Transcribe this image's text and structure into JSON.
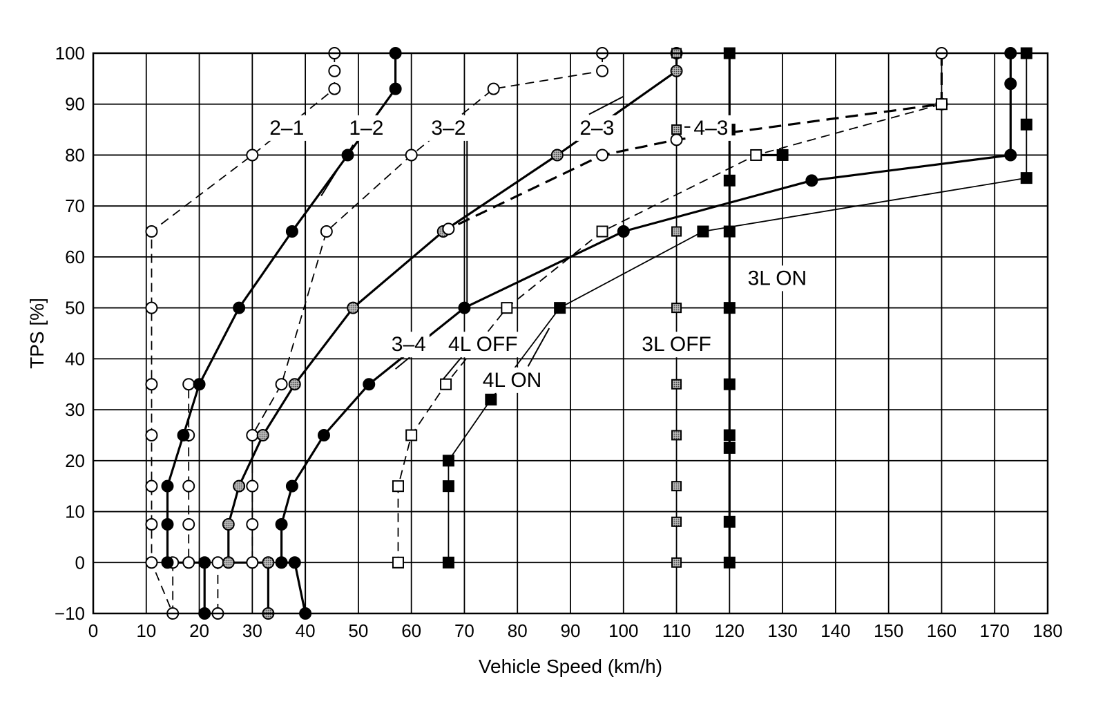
{
  "chart_data": {
    "type": "line",
    "title": "",
    "xlabel": "Vehicle Speed (km/h)",
    "ylabel": "TPS [%]",
    "xlim": [
      0,
      180
    ],
    "ylim": [
      -10,
      100
    ],
    "x_ticks": [
      0,
      10,
      20,
      30,
      40,
      50,
      60,
      70,
      80,
      90,
      100,
      110,
      120,
      130,
      140,
      150,
      160,
      170,
      180
    ],
    "y_ticks": [
      -10,
      0,
      10,
      20,
      30,
      40,
      50,
      60,
      70,
      80,
      90,
      100
    ],
    "x_tick_labels": [
      "0",
      "10",
      "20",
      "30",
      "40",
      "50",
      "60",
      "70",
      "80",
      "90",
      "100",
      "110",
      "120",
      "130",
      "140",
      "150",
      "160",
      "170",
      "180"
    ],
    "y_tick_labels": [
      "−10",
      "0",
      "10",
      "20",
      "30",
      "40",
      "50",
      "60",
      "70",
      "80",
      "90",
      "100"
    ],
    "grid": true,
    "series": [
      {
        "name": "2–1",
        "marker": "circle-open",
        "line": "dashed-thin",
        "points": [
          [
            45.5,
            100
          ],
          [
            45.5,
            96.5
          ],
          [
            45.5,
            93
          ],
          [
            30,
            80
          ],
          [
            11,
            65
          ],
          [
            11,
            50
          ],
          [
            11,
            35
          ],
          [
            11,
            25
          ],
          [
            11,
            15
          ],
          [
            11,
            7.5
          ],
          [
            11,
            0
          ],
          [
            15,
            -10
          ],
          [
            15,
            0
          ],
          [
            18,
            0
          ],
          [
            18,
            7.5
          ],
          [
            18,
            15
          ],
          [
            18,
            25
          ],
          [
            18,
            35
          ]
        ]
      },
      {
        "name": "1–2",
        "marker": "circle-filled",
        "line": "solid",
        "points": [
          [
            57,
            100
          ],
          [
            57,
            93
          ],
          [
            48,
            80
          ],
          [
            37.5,
            65
          ],
          [
            27.5,
            50
          ],
          [
            20,
            35
          ],
          [
            17,
            25
          ],
          [
            14,
            15
          ],
          [
            14,
            7.5
          ],
          [
            14,
            0
          ],
          [
            21,
            0
          ],
          [
            21,
            -10
          ]
        ]
      },
      {
        "name": "3–2",
        "marker": "circle-open",
        "line": "dashed-thin",
        "points": [
          [
            96,
            100
          ],
          [
            96,
            96.5
          ],
          [
            75.5,
            93
          ],
          [
            60,
            80
          ],
          [
            44,
            65
          ],
          [
            35.5,
            35
          ],
          [
            30,
            25
          ],
          [
            30,
            15
          ],
          [
            30,
            7.5
          ],
          [
            30,
            0
          ],
          [
            23.5,
            0
          ],
          [
            23.5,
            -10
          ]
        ]
      },
      {
        "name": "2–3",
        "marker": "circle-shaded",
        "line": "solid",
        "points": [
          [
            110,
            100
          ],
          [
            110,
            96.5
          ],
          [
            87.5,
            80
          ],
          [
            66,
            65
          ],
          [
            49,
            50
          ],
          [
            38,
            35
          ],
          [
            32,
            25
          ],
          [
            27.5,
            15
          ],
          [
            25.5,
            7.5
          ],
          [
            25.5,
            0
          ],
          [
            33,
            0
          ],
          [
            33,
            -10
          ]
        ]
      },
      {
        "name": "3–4",
        "marker": "circle-filled",
        "line": "solid",
        "points": [
          [
            173,
            100
          ],
          [
            173,
            94
          ],
          [
            173,
            80
          ],
          [
            135.5,
            75
          ],
          [
            100,
            65
          ],
          [
            70,
            50
          ],
          [
            52,
            35
          ],
          [
            43.5,
            25
          ],
          [
            37.5,
            15
          ],
          [
            35.5,
            7.5
          ],
          [
            35.5,
            0
          ],
          [
            38,
            0
          ],
          [
            40,
            -10
          ]
        ]
      },
      {
        "name": "4–3",
        "marker": "circle-open",
        "line": "dashed-thick",
        "points": [
          [
            160,
            100
          ],
          [
            160,
            90
          ],
          [
            110,
            83
          ],
          [
            96,
            80
          ],
          [
            67,
            65.5
          ]
        ]
      },
      {
        "name": "4L OFF",
        "marker": "square-open",
        "line": "dashed-thin",
        "points": [
          [
            160,
            90
          ],
          [
            125,
            80
          ],
          [
            96,
            65
          ],
          [
            78,
            50
          ],
          [
            66.5,
            35
          ],
          [
            60,
            25
          ],
          [
            57.5,
            15
          ],
          [
            57.5,
            0
          ]
        ]
      },
      {
        "name": "4L ON",
        "marker": "square-filled",
        "line": "solid-thin",
        "points": [
          [
            176,
            100
          ],
          [
            176,
            86
          ],
          [
            176,
            75.5
          ],
          [
            115,
            65
          ],
          [
            88,
            50
          ],
          [
            75,
            32
          ],
          [
            67,
            20
          ],
          [
            67,
            15
          ],
          [
            67,
            0
          ]
        ]
      },
      {
        "name": "3L OFF",
        "marker": "square-shaded",
        "line": "none",
        "points": [
          [
            110,
            100
          ],
          [
            110,
            85
          ],
          [
            110,
            65
          ],
          [
            110,
            50
          ],
          [
            110,
            35
          ],
          [
            110,
            25
          ],
          [
            110,
            15
          ],
          [
            110,
            8
          ],
          [
            110,
            0
          ]
        ]
      },
      {
        "name": "3L ON",
        "marker": "square-filled",
        "line": "solid",
        "points": [
          [
            120,
            100
          ],
          [
            120,
            85
          ],
          [
            120,
            75
          ],
          [
            120,
            65
          ],
          [
            120,
            50
          ],
          [
            120,
            35
          ],
          [
            120,
            25
          ],
          [
            120,
            22.5
          ],
          [
            120,
            8
          ],
          [
            120,
            0
          ]
        ]
      }
    ],
    "extra_segments": [
      {
        "line": "solid",
        "points": [
          [
            130,
            80
          ],
          [
            125,
            80
          ]
        ]
      }
    ],
    "extra_markers": [
      {
        "marker": "square-filled",
        "x": 130,
        "y": 80
      }
    ],
    "annotations": [
      {
        "text": "2–1",
        "x": 36.5,
        "y": 85.5,
        "leader": [
          [
            40,
            83.5
          ],
          [
            40,
            -10
          ]
        ]
      },
      {
        "text": "1–2",
        "x": 51.5,
        "y": 85.5,
        "leader": [
          [
            49,
            82
          ],
          [
            43,
            72
          ]
        ]
      },
      {
        "text": "3–2",
        "x": 67,
        "y": 85.5,
        "leader": [
          [
            70.5,
            83
          ],
          [
            70.5,
            50
          ]
        ]
      },
      {
        "text": "2–3",
        "x": 95,
        "y": 85.5,
        "leader": [
          [
            93.5,
            88
          ],
          [
            100,
            91.5
          ]
        ]
      },
      {
        "text": "4–3",
        "x": 116.5,
        "y": 85.5,
        "leader": [
          [
            111.5,
            85.5
          ],
          [
            114.5,
            85.5
          ]
        ]
      },
      {
        "text": "3–4",
        "x": 59.5,
        "y": 43,
        "leader": [
          [
            60.5,
            41
          ],
          [
            57,
            38
          ]
        ]
      },
      {
        "text": "4L OFF",
        "x": 73.5,
        "y": 43,
        "leader": [
          [
            70,
            41
          ],
          [
            66,
            36
          ]
        ]
      },
      {
        "text": "4L ON",
        "x": 79,
        "y": 36,
        "leader": [
          [
            82,
            38.5
          ],
          [
            86,
            46
          ]
        ]
      },
      {
        "text": "3L OFF",
        "x": 110,
        "y": 43,
        "leader": null
      },
      {
        "text": "3L ON",
        "x": 129,
        "y": 56,
        "leader": null
      }
    ]
  }
}
